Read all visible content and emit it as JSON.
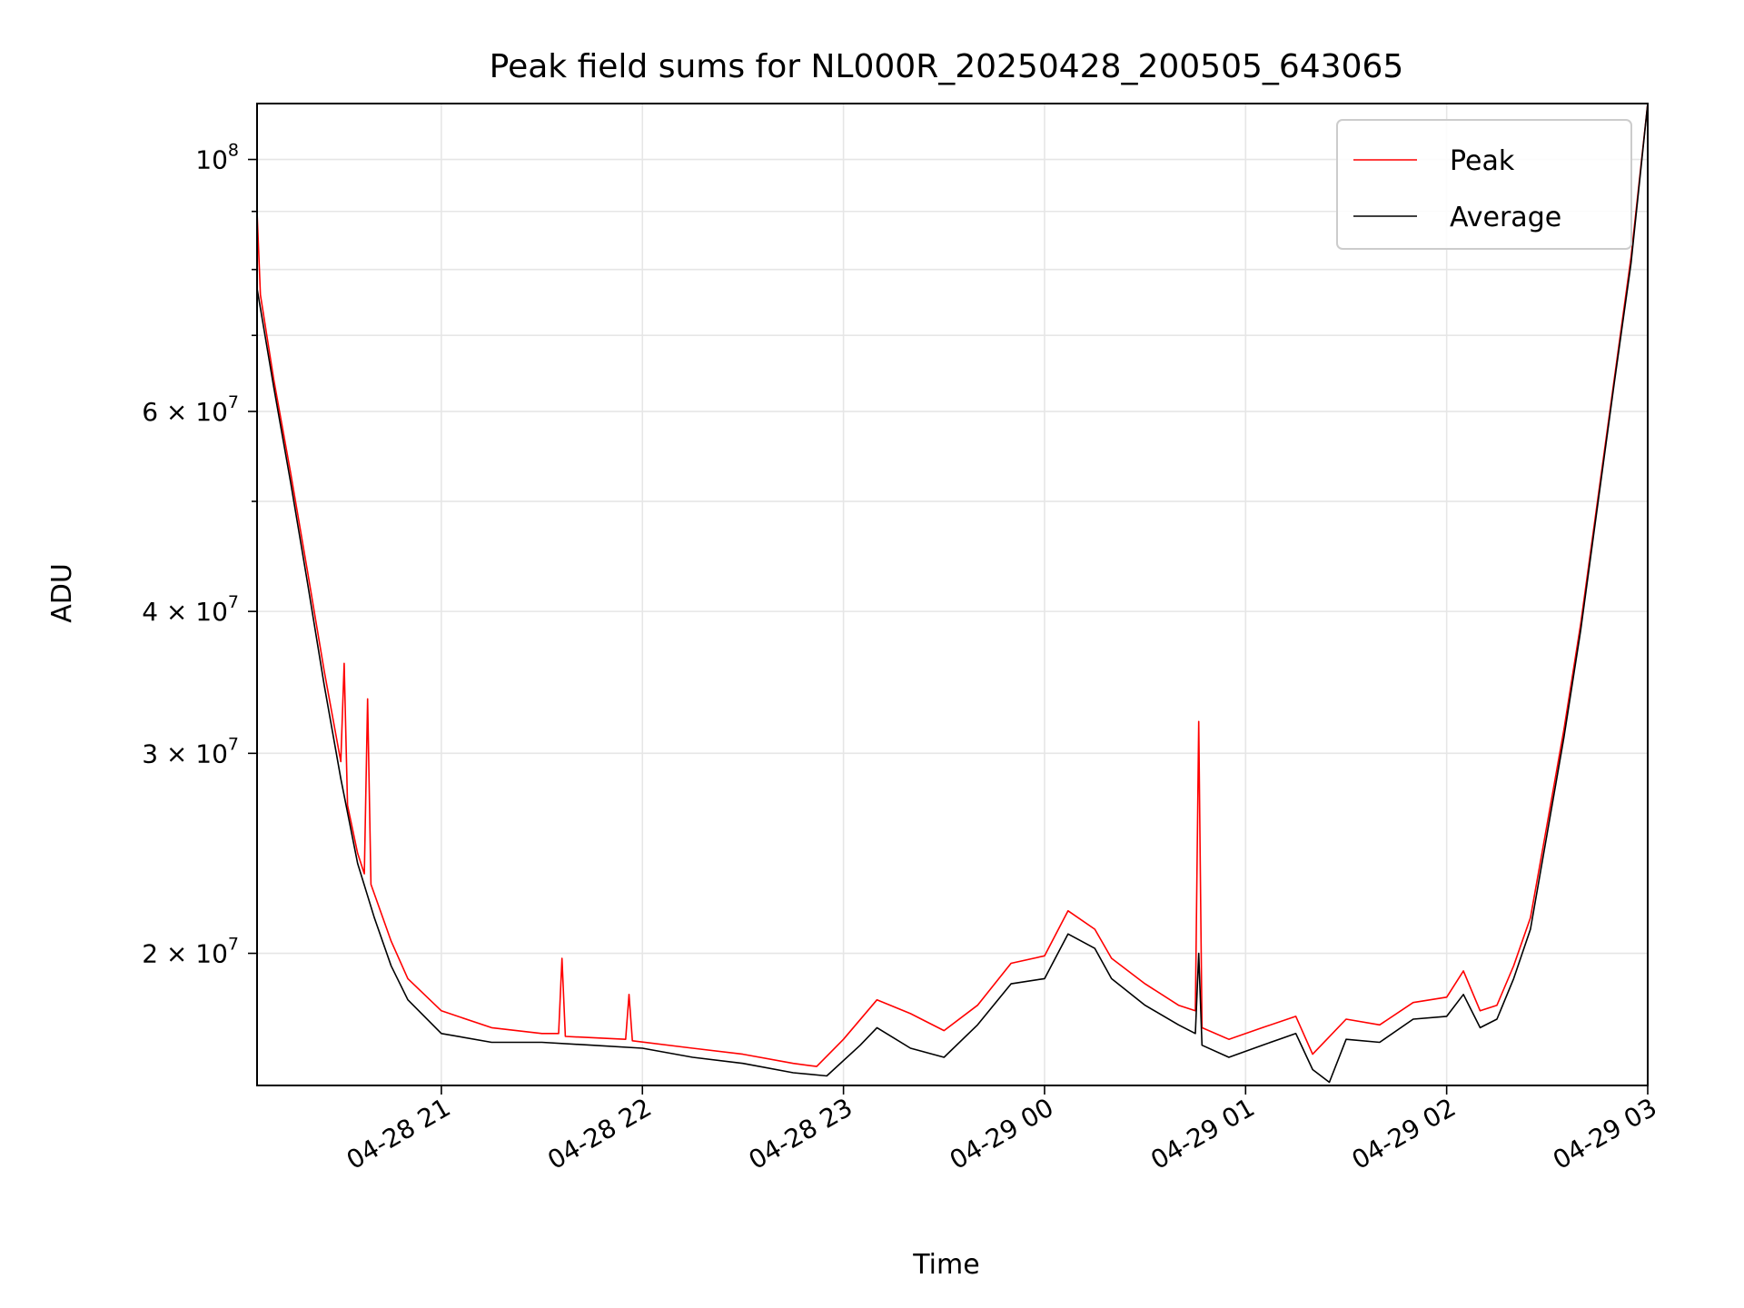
{
  "chart_data": {
    "type": "line",
    "title": "Peak field sums for NL000R_20250428_200505_643065",
    "xlabel": "Time",
    "ylabel": "ADU",
    "y_scale": "log",
    "grid": true,
    "legend_position": "top-right",
    "x_range": [
      "2025-04-28 20:05",
      "2025-04-29 03:00"
    ],
    "ylim": [
      15300000,
      112000000
    ],
    "x_ticks": [
      {
        "value": "2025-04-28 21:00",
        "label": "04-28 21"
      },
      {
        "value": "2025-04-28 22:00",
        "label": "04-28 22"
      },
      {
        "value": "2025-04-28 23:00",
        "label": "04-28 23"
      },
      {
        "value": "2025-04-29 00:00",
        "label": "04-29 00"
      },
      {
        "value": "2025-04-29 01:00",
        "label": "04-29 01"
      },
      {
        "value": "2025-04-29 02:00",
        "label": "04-29 02"
      },
      {
        "value": "2025-04-29 03:00",
        "label": "04-29 03"
      }
    ],
    "y_ticks": [
      {
        "value": 100000000,
        "base": "10",
        "exp": "8"
      },
      {
        "value": 60000000,
        "base": "6 × 10",
        "exp": "7"
      },
      {
        "value": 40000000,
        "base": "4 × 10",
        "exp": "7"
      },
      {
        "value": 30000000,
        "base": "3 × 10",
        "exp": "7"
      },
      {
        "value": 20000000,
        "base": "2 × 10",
        "exp": "7"
      }
    ],
    "y_minor_ticks": [
      50000000,
      70000000,
      80000000,
      90000000
    ],
    "series": [
      {
        "name": "Peak",
        "color": "#ff0000",
        "points": [
          [
            "2025-04-28 20:05",
            90000000
          ],
          [
            "2025-04-28 20:06",
            76000000
          ],
          [
            "2025-04-28 20:10",
            64000000
          ],
          [
            "2025-04-28 20:15",
            53000000
          ],
          [
            "2025-04-28 20:20",
            43500000
          ],
          [
            "2025-04-28 20:25",
            35500000
          ],
          [
            "2025-04-28 20:30",
            29500000
          ],
          [
            "2025-04-28 20:31",
            36000000
          ],
          [
            "2025-04-28 20:32",
            27000000
          ],
          [
            "2025-04-28 20:35",
            24500000
          ],
          [
            "2025-04-28 20:37",
            23500000
          ],
          [
            "2025-04-28 20:38",
            33500000
          ],
          [
            "2025-04-28 20:39",
            23000000
          ],
          [
            "2025-04-28 20:45",
            20500000
          ],
          [
            "2025-04-28 20:50",
            19000000
          ],
          [
            "2025-04-28 21:00",
            17800000
          ],
          [
            "2025-04-28 21:15",
            17200000
          ],
          [
            "2025-04-28 21:30",
            17000000
          ],
          [
            "2025-04-28 21:35",
            17000000
          ],
          [
            "2025-04-28 21:36",
            19800000
          ],
          [
            "2025-04-28 21:37",
            16900000
          ],
          [
            "2025-04-28 21:55",
            16800000
          ],
          [
            "2025-04-28 21:56",
            18400000
          ],
          [
            "2025-04-28 21:57",
            16750000
          ],
          [
            "2025-04-28 22:15",
            16500000
          ],
          [
            "2025-04-28 22:30",
            16300000
          ],
          [
            "2025-04-28 22:45",
            16000000
          ],
          [
            "2025-04-28 22:52",
            15900000
          ],
          [
            "2025-04-28 23:00",
            16800000
          ],
          [
            "2025-04-28 23:10",
            18200000
          ],
          [
            "2025-04-28 23:20",
            17700000
          ],
          [
            "2025-04-28 23:30",
            17100000
          ],
          [
            "2025-04-28 23:40",
            18000000
          ],
          [
            "2025-04-28 23:50",
            19600000
          ],
          [
            "2025-04-29 00:00",
            19900000
          ],
          [
            "2025-04-29 00:07",
            21800000
          ],
          [
            "2025-04-29 00:15",
            21000000
          ],
          [
            "2025-04-29 00:20",
            19800000
          ],
          [
            "2025-04-29 00:30",
            18800000
          ],
          [
            "2025-04-29 00:40",
            18000000
          ],
          [
            "2025-04-29 00:45",
            17800000
          ],
          [
            "2025-04-29 00:46",
            32000000
          ],
          [
            "2025-04-29 00:47",
            17200000
          ],
          [
            "2025-04-29 00:55",
            16800000
          ],
          [
            "2025-04-29 01:05",
            17200000
          ],
          [
            "2025-04-29 01:15",
            17600000
          ],
          [
            "2025-04-29 01:20",
            16300000
          ],
          [
            "2025-04-29 01:30",
            17500000
          ],
          [
            "2025-04-29 01:40",
            17300000
          ],
          [
            "2025-04-29 01:50",
            18100000
          ],
          [
            "2025-04-29 02:00",
            18300000
          ],
          [
            "2025-04-29 02:05",
            19300000
          ],
          [
            "2025-04-29 02:10",
            17800000
          ],
          [
            "2025-04-29 02:15",
            18000000
          ],
          [
            "2025-04-29 02:20",
            19500000
          ],
          [
            "2025-04-29 02:25",
            21500000
          ],
          [
            "2025-04-29 02:30",
            26000000
          ],
          [
            "2025-04-29 02:35",
            31500000
          ],
          [
            "2025-04-29 02:40",
            39000000
          ],
          [
            "2025-04-29 02:45",
            50000000
          ],
          [
            "2025-04-29 02:50",
            64000000
          ],
          [
            "2025-04-29 02:55",
            82000000
          ],
          [
            "2025-04-29 03:00",
            112000000
          ]
        ]
      },
      {
        "name": "Average",
        "color": "#000000",
        "points": [
          [
            "2025-04-28 20:05",
            77000000
          ],
          [
            "2025-04-28 20:10",
            63000000
          ],
          [
            "2025-04-28 20:15",
            52000000
          ],
          [
            "2025-04-28 20:20",
            42500000
          ],
          [
            "2025-04-28 20:25",
            34500000
          ],
          [
            "2025-04-28 20:30",
            28500000
          ],
          [
            "2025-04-28 20:35",
            24000000
          ],
          [
            "2025-04-28 20:40",
            21500000
          ],
          [
            "2025-04-28 20:45",
            19500000
          ],
          [
            "2025-04-28 20:50",
            18200000
          ],
          [
            "2025-04-28 21:00",
            17000000
          ],
          [
            "2025-04-28 21:15",
            16700000
          ],
          [
            "2025-04-28 21:30",
            16700000
          ],
          [
            "2025-04-28 21:45",
            16600000
          ],
          [
            "2025-04-28 22:00",
            16500000
          ],
          [
            "2025-04-28 22:15",
            16200000
          ],
          [
            "2025-04-28 22:30",
            16000000
          ],
          [
            "2025-04-28 22:45",
            15700000
          ],
          [
            "2025-04-28 22:55",
            15600000
          ],
          [
            "2025-04-28 23:05",
            16600000
          ],
          [
            "2025-04-28 23:10",
            17200000
          ],
          [
            "2025-04-28 23:20",
            16500000
          ],
          [
            "2025-04-28 23:30",
            16200000
          ],
          [
            "2025-04-28 23:40",
            17300000
          ],
          [
            "2025-04-28 23:50",
            18800000
          ],
          [
            "2025-04-29 00:00",
            19000000
          ],
          [
            "2025-04-29 00:07",
            20800000
          ],
          [
            "2025-04-29 00:15",
            20200000
          ],
          [
            "2025-04-29 00:20",
            19000000
          ],
          [
            "2025-04-29 00:30",
            18000000
          ],
          [
            "2025-04-29 00:40",
            17300000
          ],
          [
            "2025-04-29 00:45",
            17000000
          ],
          [
            "2025-04-29 00:46",
            20000000
          ],
          [
            "2025-04-29 00:47",
            16600000
          ],
          [
            "2025-04-29 00:55",
            16200000
          ],
          [
            "2025-04-29 01:05",
            16600000
          ],
          [
            "2025-04-29 01:15",
            17000000
          ],
          [
            "2025-04-29 01:20",
            15800000
          ],
          [
            "2025-04-29 01:25",
            15400000
          ],
          [
            "2025-04-29 01:30",
            16800000
          ],
          [
            "2025-04-29 01:40",
            16700000
          ],
          [
            "2025-04-29 01:50",
            17500000
          ],
          [
            "2025-04-29 02:00",
            17600000
          ],
          [
            "2025-04-29 02:05",
            18400000
          ],
          [
            "2025-04-29 02:10",
            17200000
          ],
          [
            "2025-04-29 02:15",
            17500000
          ],
          [
            "2025-04-29 02:20",
            19000000
          ],
          [
            "2025-04-29 02:25",
            21000000
          ],
          [
            "2025-04-29 02:30",
            25500000
          ],
          [
            "2025-04-29 02:35",
            31000000
          ],
          [
            "2025-04-29 02:40",
            38500000
          ],
          [
            "2025-04-29 02:45",
            49500000
          ],
          [
            "2025-04-29 02:50",
            63500000
          ],
          [
            "2025-04-29 02:55",
            81000000
          ],
          [
            "2025-04-29 03:00",
            112000000
          ]
        ]
      }
    ]
  }
}
